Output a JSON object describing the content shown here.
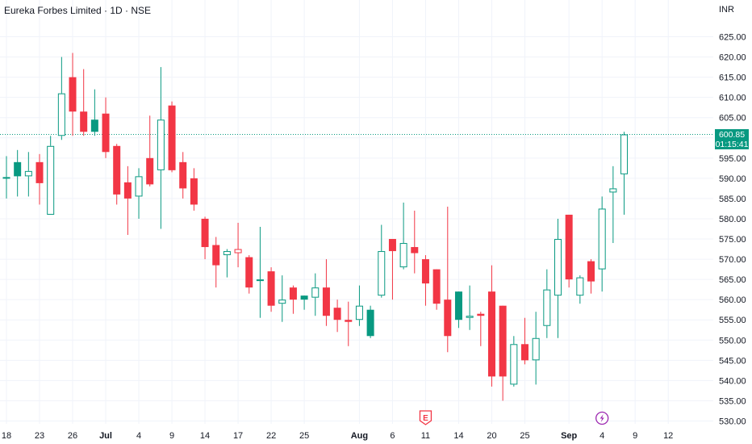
{
  "header": {
    "title": "Eureka Forbes Limited · 1D · NSE",
    "currency": "INR"
  },
  "last_price": {
    "price": "600.85",
    "countdown": "01:15:41"
  },
  "events": [
    {
      "date": "Aug 11",
      "icon": "earnings-flag-icon",
      "label": "E"
    },
    {
      "date": "Sep 4",
      "icon": "lightning-icon"
    }
  ],
  "colors": {
    "up": "#089981",
    "down": "#F23645",
    "grid": "#F0F3FA",
    "event_earnings": "#F23645",
    "event_dividend": "#9C27B0"
  },
  "chart_data": {
    "type": "candlestick",
    "ylim": [
      527.5,
      627.5
    ],
    "yticks": [
      530,
      535,
      540,
      545,
      550,
      555,
      560,
      565,
      570,
      575,
      580,
      585,
      590,
      595,
      600,
      605,
      610,
      615,
      620,
      625
    ],
    "xticks": [
      {
        "label": "18",
        "bar": 0
      },
      {
        "label": "23",
        "bar": 3
      },
      {
        "label": "26",
        "bar": 6
      },
      {
        "label": "Jul",
        "bar": 9,
        "bold": true
      },
      {
        "label": "4",
        "bar": 12
      },
      {
        "label": "9",
        "bar": 15
      },
      {
        "label": "14",
        "bar": 18
      },
      {
        "label": "17",
        "bar": 21
      },
      {
        "label": "22",
        "bar": 24
      },
      {
        "label": "25",
        "bar": 27
      },
      {
        "label": "Aug",
        "bar": 32,
        "bold": true
      },
      {
        "label": "6",
        "bar": 35
      },
      {
        "label": "11",
        "bar": 38
      },
      {
        "label": "14",
        "bar": 41
      },
      {
        "label": "20",
        "bar": 44
      },
      {
        "label": "25",
        "bar": 47
      },
      {
        "label": "Sep",
        "bar": 51,
        "bold": true
      },
      {
        "label": "4",
        "bar": 54
      },
      {
        "label": "9",
        "bar": 57
      },
      {
        "label": "12",
        "bar": 60
      }
    ],
    "candles": [
      {
        "o": 590.0,
        "h": 595.5,
        "l": 585.0,
        "c": 590.3,
        "hollow": true
      },
      {
        "o": 590.5,
        "h": 597.0,
        "l": 585.5,
        "c": 594.0,
        "hollow": false
      },
      {
        "o": 590.5,
        "h": 596.5,
        "l": 585.5,
        "c": 591.8,
        "hollow": true
      },
      {
        "o": 594.0,
        "h": 596.0,
        "l": 583.5,
        "c": 588.8,
        "hollow": false
      },
      {
        "o": 581.0,
        "h": 600.5,
        "l": 581.0,
        "c": 598.0,
        "hollow": true
      },
      {
        "o": 600.5,
        "h": 620.0,
        "l": 599.5,
        "c": 611.0,
        "hollow": true
      },
      {
        "o": 615.0,
        "h": 621.0,
        "l": 600.5,
        "c": 606.5,
        "hollow": false
      },
      {
        "o": 606.5,
        "h": 617.0,
        "l": 600.5,
        "c": 601.5,
        "hollow": false
      },
      {
        "o": 601.5,
        "h": 612.0,
        "l": 600.5,
        "c": 604.5,
        "hollow": false
      },
      {
        "o": 606.0,
        "h": 610.0,
        "l": 595.0,
        "c": 596.5,
        "hollow": false
      },
      {
        "o": 598.0,
        "h": 598.5,
        "l": 583.5,
        "c": 586.0,
        "hollow": false
      },
      {
        "o": 589.0,
        "h": 593.0,
        "l": 576.0,
        "c": 585.0,
        "hollow": false
      },
      {
        "o": 585.5,
        "h": 592.5,
        "l": 580.0,
        "c": 590.5,
        "hollow": true
      },
      {
        "o": 595.0,
        "h": 605.5,
        "l": 588.0,
        "c": 588.5,
        "hollow": false
      },
      {
        "o": 592.0,
        "h": 617.5,
        "l": 577.5,
        "c": 604.5,
        "hollow": true
      },
      {
        "o": 608.0,
        "h": 609.0,
        "l": 591.5,
        "c": 592.0,
        "hollow": false
      },
      {
        "o": 594.0,
        "h": 596.5,
        "l": 585.0,
        "c": 587.5,
        "hollow": false
      },
      {
        "o": 590.0,
        "h": 592.5,
        "l": 582.0,
        "c": 583.5,
        "hollow": false
      },
      {
        "o": 580.0,
        "h": 580.5,
        "l": 570.0,
        "c": 573.0,
        "hollow": false
      },
      {
        "o": 573.5,
        "h": 575.5,
        "l": 563.0,
        "c": 568.5,
        "hollow": false
      },
      {
        "o": 571.0,
        "h": 572.5,
        "l": 565.5,
        "c": 572.0,
        "hollow": true
      },
      {
        "o": 572.5,
        "h": 579.0,
        "l": 568.0,
        "c": 571.5,
        "hollow": true
      },
      {
        "o": 570.5,
        "h": 571.0,
        "l": 561.5,
        "c": 563.0,
        "hollow": false
      },
      {
        "o": 565.0,
        "h": 578.0,
        "l": 555.5,
        "c": 565.0,
        "hollow": true
      },
      {
        "o": 567.0,
        "h": 568.0,
        "l": 557.0,
        "c": 558.5,
        "hollow": false
      },
      {
        "o": 559.0,
        "h": 566.0,
        "l": 554.5,
        "c": 560.0,
        "hollow": true
      },
      {
        "o": 563.0,
        "h": 563.5,
        "l": 556.5,
        "c": 560.0,
        "hollow": false
      },
      {
        "o": 560.0,
        "h": 561.0,
        "l": 557.5,
        "c": 561.0,
        "hollow": false
      },
      {
        "o": 560.5,
        "h": 566.5,
        "l": 556.0,
        "c": 563.0,
        "hollow": true
      },
      {
        "o": 563.0,
        "h": 570.0,
        "l": 553.5,
        "c": 556.0,
        "hollow": false
      },
      {
        "o": 558.0,
        "h": 560.0,
        "l": 552.0,
        "c": 555.0,
        "hollow": false
      },
      {
        "o": 555.0,
        "h": 559.5,
        "l": 548.5,
        "c": 554.5,
        "hollow": false
      },
      {
        "o": 555.0,
        "h": 563.5,
        "l": 553.5,
        "c": 558.5,
        "hollow": true
      },
      {
        "o": 551.0,
        "h": 558.5,
        "l": 550.5,
        "c": 557.5,
        "hollow": false
      },
      {
        "o": 561.0,
        "h": 578.5,
        "l": 560.5,
        "c": 572.0,
        "hollow": true
      },
      {
        "o": 575.0,
        "h": 575.0,
        "l": 560.0,
        "c": 572.0,
        "hollow": false
      },
      {
        "o": 568.0,
        "h": 584.0,
        "l": 567.5,
        "c": 574.0,
        "hollow": true
      },
      {
        "o": 573.0,
        "h": 582.0,
        "l": 566.5,
        "c": 571.5,
        "hollow": false
      },
      {
        "o": 570.0,
        "h": 571.0,
        "l": 558.5,
        "c": 564.0,
        "hollow": false
      },
      {
        "o": 567.5,
        "h": 567.5,
        "l": 557.5,
        "c": 559.0,
        "hollow": false
      },
      {
        "o": 560.0,
        "h": 583.0,
        "l": 547.0,
        "c": 551.0,
        "hollow": false
      },
      {
        "o": 555.0,
        "h": 562.0,
        "l": 553.0,
        "c": 562.0,
        "hollow": false
      },
      {
        "o": 555.5,
        "h": 563.5,
        "l": 552.5,
        "c": 556.0,
        "hollow": true
      },
      {
        "o": 556.5,
        "h": 557.0,
        "l": 548.5,
        "c": 556.0,
        "hollow": false
      },
      {
        "o": 562.0,
        "h": 568.5,
        "l": 538.5,
        "c": 541.0,
        "hollow": false
      },
      {
        "o": 558.5,
        "h": 558.5,
        "l": 535.0,
        "c": 541.0,
        "hollow": false
      },
      {
        "o": 539.0,
        "h": 551.0,
        "l": 538.5,
        "c": 549.0,
        "hollow": true
      },
      {
        "o": 549.0,
        "h": 555.5,
        "l": 544.0,
        "c": 545.0,
        "hollow": false
      },
      {
        "o": 545.0,
        "h": 557.0,
        "l": 539.0,
        "c": 550.5,
        "hollow": true
      },
      {
        "o": 553.5,
        "h": 567.5,
        "l": 550.5,
        "c": 562.5,
        "hollow": true
      },
      {
        "o": 561.0,
        "h": 580.0,
        "l": 550.5,
        "c": 575.0,
        "hollow": true
      },
      {
        "o": 581.0,
        "h": 581.0,
        "l": 563.0,
        "c": 565.0,
        "hollow": false
      },
      {
        "o": 561.0,
        "h": 566.0,
        "l": 559.0,
        "c": 565.5,
        "hollow": true
      },
      {
        "o": 569.5,
        "h": 570.0,
        "l": 561.5,
        "c": 564.5,
        "hollow": false
      },
      {
        "o": 567.5,
        "h": 585.5,
        "l": 562.0,
        "c": 582.5,
        "hollow": true
      },
      {
        "o": 586.5,
        "h": 593.0,
        "l": 574.0,
        "c": 587.5,
        "hollow": true
      },
      {
        "o": 591.0,
        "h": 601.5,
        "l": 581.0,
        "c": 600.85,
        "hollow": true
      }
    ]
  }
}
